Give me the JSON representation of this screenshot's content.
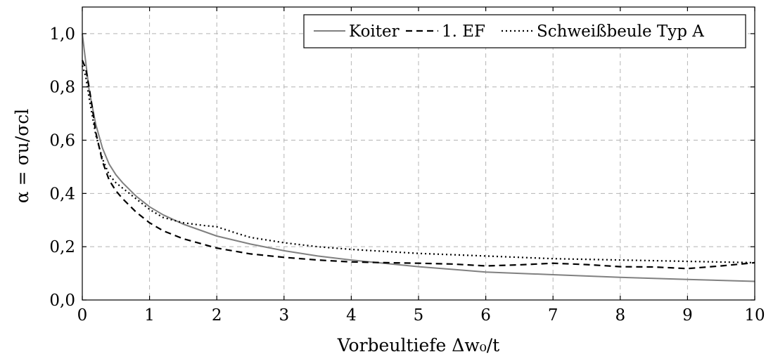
{
  "chart_data": {
    "type": "line",
    "title": "",
    "xlabel": "Vorbeultiefe Δw₀/t",
    "ylabel": "α = σu/σcl",
    "xlim": [
      0,
      10
    ],
    "ylim": [
      0,
      1.1
    ],
    "x_ticks": [
      "0",
      "1",
      "2",
      "3",
      "4",
      "5",
      "6",
      "7",
      "8",
      "9",
      "10"
    ],
    "y_ticks": [
      "0,0",
      "0,2",
      "0,4",
      "0,6",
      "0,8",
      "1,0"
    ],
    "x_tick_values": [
      0,
      1,
      2,
      3,
      4,
      5,
      6,
      7,
      8,
      9,
      10
    ],
    "y_tick_values": [
      0,
      0.2,
      0.4,
      0.6,
      0.8,
      1.0
    ],
    "grid": true,
    "grid_style": "dashed",
    "legend_position": "top-right",
    "series": [
      {
        "name": "Koiter",
        "color": "#808080",
        "style": "solid",
        "x": [
          0,
          0.1,
          0.2,
          0.3,
          0.4,
          0.5,
          0.6,
          0.8,
          1.0,
          1.2,
          1.5,
          2.0,
          2.5,
          3.0,
          3.5,
          4.0,
          5.0,
          6.0,
          7.0,
          8.0,
          9.0,
          10.0
        ],
        "y": [
          1.0,
          0.79,
          0.66,
          0.57,
          0.51,
          0.47,
          0.44,
          0.39,
          0.35,
          0.32,
          0.285,
          0.24,
          0.21,
          0.185,
          0.165,
          0.15,
          0.125,
          0.105,
          0.095,
          0.085,
          0.077,
          0.07
        ]
      },
      {
        "name": "1. EF",
        "color": "#000000",
        "style": "dashed",
        "x": [
          0,
          0.05,
          0.1,
          0.15,
          0.2,
          0.3,
          0.4,
          0.5,
          0.6,
          0.8,
          1.0,
          1.2,
          1.5,
          2.0,
          2.5,
          3.0,
          3.5,
          4.0,
          4.5,
          5.0,
          5.5,
          6.0,
          6.5,
          7.0,
          7.5,
          8.0,
          8.5,
          9.0,
          9.5,
          10.0
        ],
        "y": [
          0.9,
          0.87,
          0.8,
          0.72,
          0.63,
          0.52,
          0.45,
          0.41,
          0.38,
          0.33,
          0.29,
          0.26,
          0.23,
          0.195,
          0.173,
          0.16,
          0.15,
          0.143,
          0.14,
          0.138,
          0.135,
          0.128,
          0.132,
          0.138,
          0.133,
          0.125,
          0.124,
          0.118,
          0.128,
          0.14
        ]
      },
      {
        "name": "Schweißbeule Typ A",
        "color": "#000000",
        "style": "dotted",
        "x": [
          0,
          0.05,
          0.1,
          0.2,
          0.3,
          0.4,
          0.5,
          0.6,
          0.8,
          1.0,
          1.2,
          1.5,
          1.8,
          2.0,
          2.3,
          2.5,
          3.0,
          3.5,
          4.0,
          5.0,
          6.0,
          7.0,
          8.0,
          9.0,
          10.0
        ],
        "y": [
          0.88,
          0.84,
          0.76,
          0.62,
          0.53,
          0.47,
          0.44,
          0.42,
          0.38,
          0.34,
          0.31,
          0.29,
          0.28,
          0.275,
          0.25,
          0.235,
          0.215,
          0.2,
          0.19,
          0.175,
          0.165,
          0.155,
          0.15,
          0.145,
          0.14
        ]
      }
    ]
  }
}
